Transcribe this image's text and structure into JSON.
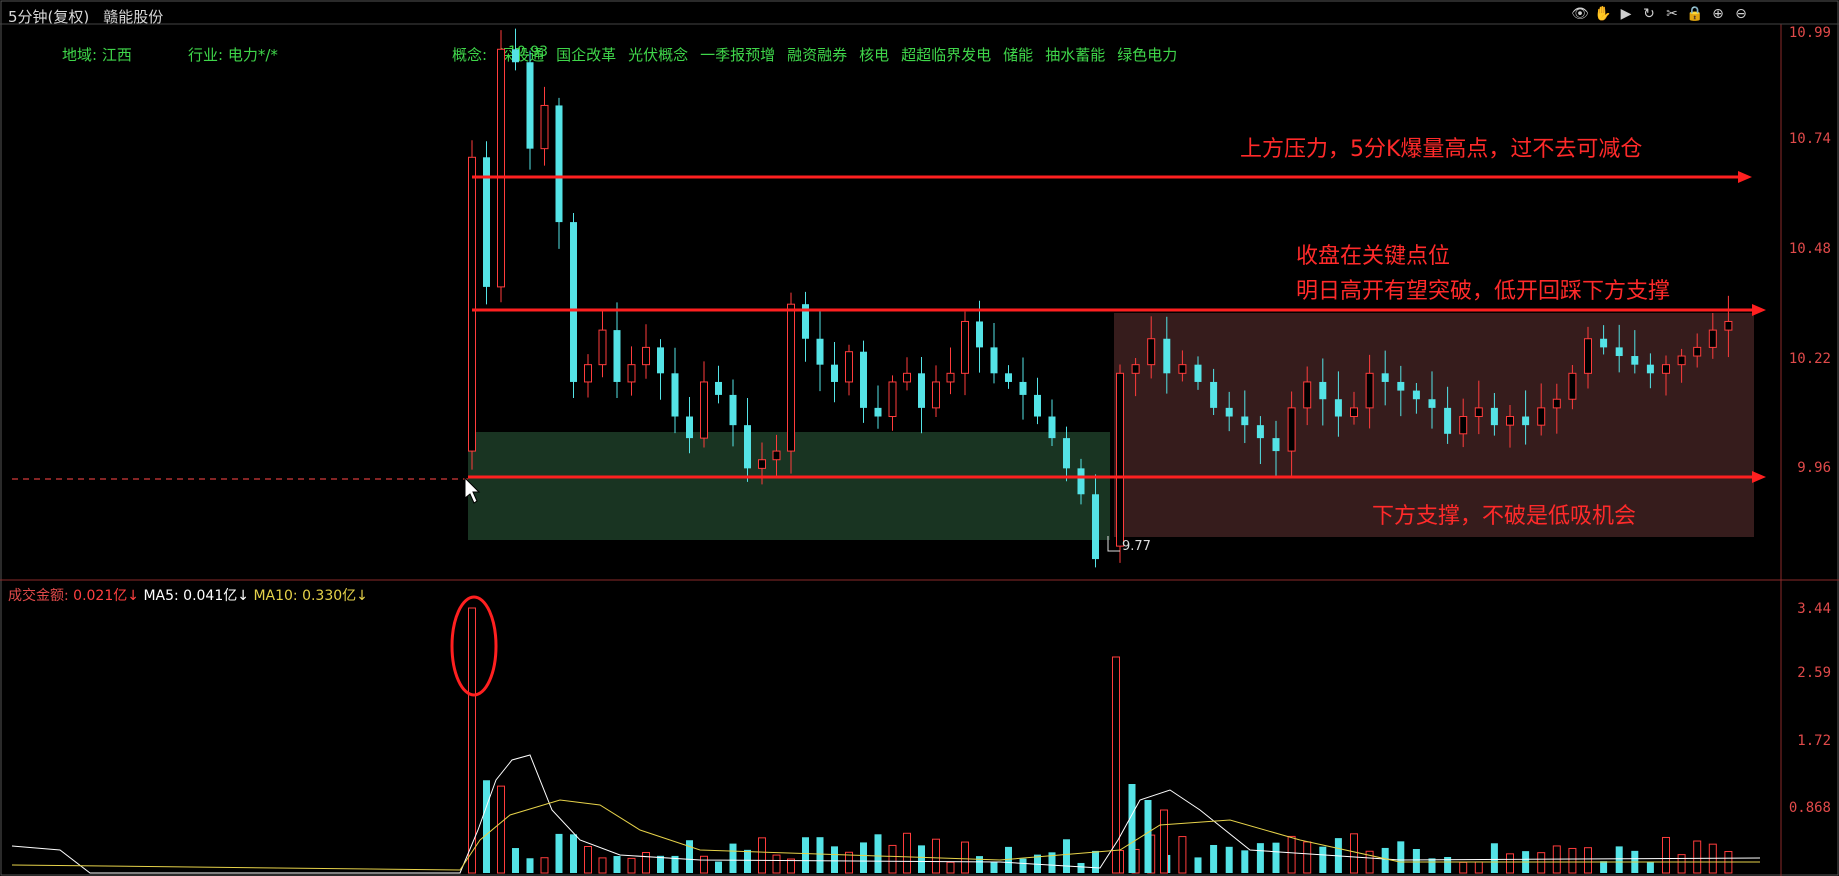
{
  "window": {
    "period": "5分钟(复权)",
    "stock_name": "赣能股份"
  },
  "toolbar": {
    "icons": [
      "eye-icon",
      "hand-icon",
      "play-icon",
      "refresh-icon",
      "scissors-icon",
      "lock-icon",
      "zoom-in-icon",
      "zoom-out-icon"
    ],
    "glyphs": [
      "👁",
      "✋",
      "▶",
      "↻",
      "✂",
      "🔒",
      "⊕",
      "⊖"
    ]
  },
  "info": {
    "region": "地域: 江西",
    "industry": "行业: 电力*/*",
    "concept_label": "概念:",
    "concepts": [
      "深股通",
      "国企改革",
      "光伏概念",
      "一季报预增",
      "融资融券",
      "核电",
      "超超临界发电",
      "储能",
      "抽水蓄能",
      "绿色电力"
    ],
    "overlay_number": "10.93"
  },
  "price_axis": [
    "10.99",
    "10.74",
    "10.48",
    "10.22",
    "9.96"
  ],
  "low_marker": "9.77",
  "volume_legend": {
    "label": "成交金额:",
    "value": "0.021亿↓",
    "ma5_label": "MA5:",
    "ma5_value": "0.041亿↓",
    "ma10_label": "MA10:",
    "ma10_value": "0.330亿↓"
  },
  "volume_axis": [
    "3.44",
    "2.59",
    "1.72",
    "0.868"
  ],
  "annotations": {
    "resistance": "上方压力，5分K爆量高点，过不去可减仓",
    "close_key_1": "收盘在关键点位",
    "close_key_2": "明日高开有望突破，低开回踩下方支撑",
    "support": "下方支撑，不破是低吸机会"
  },
  "colors": {
    "up": "#ff3c3c",
    "down": "#54e3e6",
    "annotation": "#ff2a2a",
    "green_zone": "#1f3d2a",
    "red_zone": "#4a2424",
    "ma5": "#ffffff",
    "ma10": "#e6d24a"
  }
}
